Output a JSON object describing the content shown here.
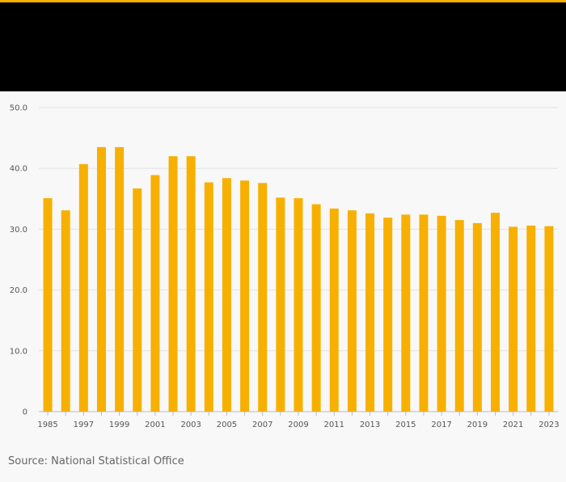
{
  "chart_data": {
    "type": "bar",
    "title": "",
    "xlabel": "",
    "ylabel": "",
    "categories": [
      "1985",
      "1996",
      "1997",
      "1998",
      "1999",
      "2000",
      "2001",
      "2002",
      "2003",
      "2004",
      "2005",
      "2006",
      "2007",
      "2008",
      "2009",
      "2010",
      "2011",
      "2012",
      "2013",
      "2014",
      "2015",
      "2016",
      "2017",
      "2018",
      "2019",
      "2020",
      "2021",
      "2022",
      "2023"
    ],
    "x_tick_labels": [
      "1985",
      "1997",
      "1999",
      "2001",
      "2003",
      "2005",
      "2007",
      "2009",
      "2011",
      "2013",
      "2015",
      "2017",
      "2019",
      "2021",
      "2023"
    ],
    "values": [
      35.1,
      33.1,
      40.7,
      43.5,
      43.5,
      36.7,
      38.9,
      42.0,
      42.0,
      37.7,
      38.4,
      38.0,
      37.6,
      35.2,
      35.1,
      34.1,
      33.4,
      33.1,
      32.6,
      31.9,
      32.4,
      32.4,
      32.2,
      31.5,
      31.0,
      32.7,
      30.4,
      30.6,
      30.5
    ],
    "ylim": [
      0,
      50
    ],
    "y_ticks": [
      "0",
      "10.0",
      "20.0",
      "30.0",
      "40.0",
      "50.0"
    ],
    "y_tick_values": [
      0,
      10,
      20,
      30,
      40,
      50
    ],
    "grid": true,
    "bar_color": "#f7b000"
  },
  "source": "Source: National Statistical Office",
  "colors": {
    "accent": "#f7b000",
    "header": "#000000"
  }
}
